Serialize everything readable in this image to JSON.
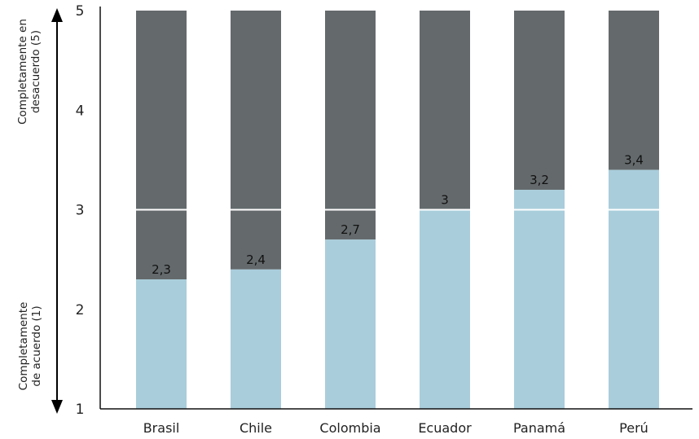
{
  "chart_data": {
    "type": "bar",
    "categories": [
      "Brasil",
      "Chile",
      "Colombia",
      "Ecuador",
      "Panamá",
      "Perú"
    ],
    "values": [
      2.3,
      2.4,
      2.7,
      3,
      3.2,
      3.4
    ],
    "value_labels": [
      "2,3",
      "2,4",
      "2,7",
      "3",
      "3,2",
      "3,4"
    ],
    "ylim": [
      1,
      5
    ],
    "yticks": [
      "1",
      "2",
      "3",
      "4",
      "5"
    ],
    "ylabel_top": [
      "Completamente en",
      "desacuerdo (5)"
    ],
    "ylabel_bottom": [
      "Completamente",
      "de acuerdo (1)"
    ],
    "grid": false,
    "colors": {
      "value_fill": "#a9cddb",
      "remainder_fill": "#646a6c",
      "axis": "#111111"
    }
  }
}
